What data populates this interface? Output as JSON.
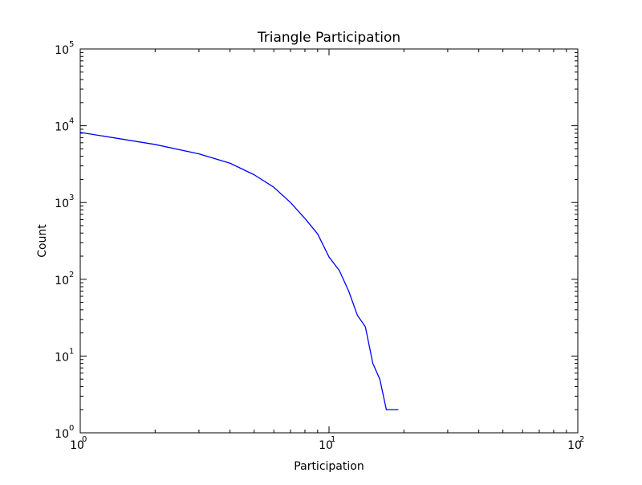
{
  "chart_data": {
    "type": "line",
    "title": "Triangle Participation",
    "xlabel": "Participation",
    "ylabel": "Count",
    "xscale": "log",
    "yscale": "log",
    "xlim": [
      1,
      100
    ],
    "ylim": [
      1,
      100000
    ],
    "grid": false,
    "legend": "none",
    "line_color": "#0000ff",
    "x_ticks": [
      {
        "base": "10",
        "exp": "0",
        "value": 1
      },
      {
        "base": "10",
        "exp": "1",
        "value": 10
      },
      {
        "base": "10",
        "exp": "2",
        "value": 100
      }
    ],
    "y_ticks": [
      {
        "base": "10",
        "exp": "0",
        "value": 1
      },
      {
        "base": "10",
        "exp": "1",
        "value": 10
      },
      {
        "base": "10",
        "exp": "2",
        "value": 100
      },
      {
        "base": "10",
        "exp": "3",
        "value": 1000
      },
      {
        "base": "10",
        "exp": "4",
        "value": 10000
      },
      {
        "base": "10",
        "exp": "5",
        "value": 100000
      }
    ],
    "series": [
      {
        "x": [
          1,
          2,
          3,
          4,
          5,
          6,
          7,
          8,
          9,
          10,
          11,
          12,
          13,
          14,
          15,
          16,
          17,
          18,
          19
        ],
        "y": [
          8200,
          5700,
          4300,
          3250,
          2300,
          1580,
          1000,
          620,
          390,
          195,
          130,
          70,
          34,
          24,
          8,
          5,
          2,
          2,
          2
        ]
      }
    ]
  }
}
